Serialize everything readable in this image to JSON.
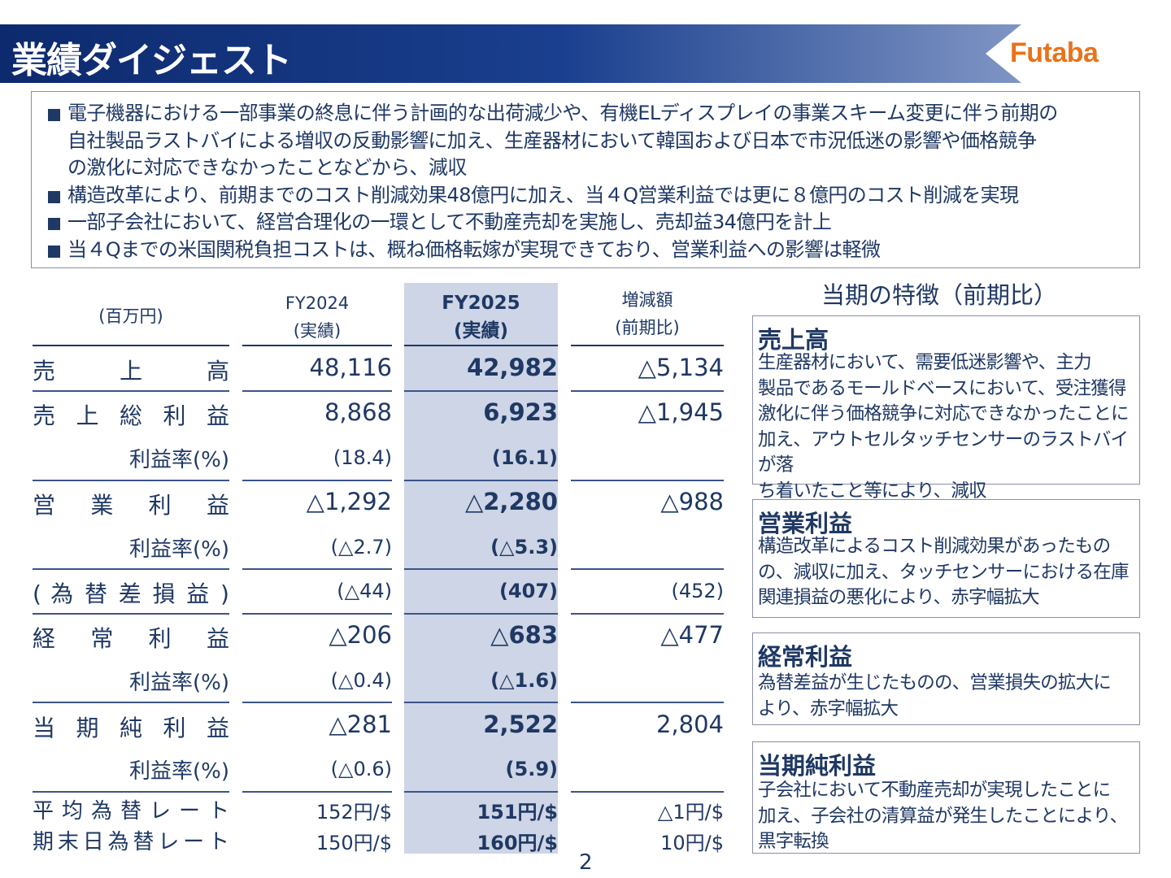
{
  "header": {
    "title": "業績ダイジェスト",
    "logo": "Futaba"
  },
  "summary": {
    "bullets": [
      "電子機器における一部事業の終息に伴う計画的な出荷減少や、有機ELディスプレイの事業スキーム変更に伴う前期の",
      "自社製品ラストバイによる増収の反動影響に加え、生産器材において韓国および日本で市況低迷の影響や価格競争",
      "の激化に対応できなかったことなどから、減収",
      "構造改革により、前期までのコスト削減効果48億円に加え、当４Q営業利益では更に８億円のコスト削減を実現",
      "一部子会社において、経営合理化の一環として不動産売却を実施し、売却益34億円を計上",
      "当４Qまでの米国関税負担コストは、概ね価格転嫁が実現できており、営業利益への影響は軽微"
    ]
  },
  "table": {
    "unit": "(百万円)",
    "col1": [
      "FY2024",
      "(実績)"
    ],
    "col2": [
      "FY2025",
      "(実績)"
    ],
    "col3": [
      "増減額",
      "(前期比)"
    ],
    "rows": [
      {
        "label": "売　　上　　高",
        "v1": "48,116",
        "v2": "42,982",
        "v3": "△5,134"
      },
      {
        "label": "売 上 総 利 益",
        "v1": "8,868",
        "v2": "6,923",
        "v3": "△1,945"
      },
      {
        "label": "利益率(%)",
        "v1": "(18.4)",
        "v2": "(16.1)",
        "v3": ""
      },
      {
        "label": "営　業　利　益",
        "v1": "△1,292",
        "v2": "△2,280",
        "v3": "△988"
      },
      {
        "label": "利益率(%)",
        "v1": "(△2.7)",
        "v2": "(△5.3)",
        "v3": ""
      },
      {
        "label": "( 為 替 差 損 益 )",
        "v1": "(△44)",
        "v2": "(407)",
        "v3": "(452)"
      },
      {
        "label": "経　常　利　益",
        "v1": "△206",
        "v2": "△683",
        "v3": "△477"
      },
      {
        "label": "利益率(%)",
        "v1": "(△0.4)",
        "v2": "(△1.6)",
        "v3": ""
      },
      {
        "label": "当 期 純 利 益",
        "v1": "△281",
        "v2": "2,522",
        "v3": "2,804"
      },
      {
        "label": "利益率(%)",
        "v1": "(△0.6)",
        "v2": "(5.9)",
        "v3": ""
      },
      {
        "label": "平 均 為 替 レ ー ト",
        "v1": "152円/$",
        "v2": "151円/$",
        "v3": "△1円/$"
      },
      {
        "label": "期末日為替レート",
        "v1": "150円/$",
        "v2": "160円/$",
        "v3": "10円/$"
      }
    ]
  },
  "side": {
    "title": "当期の特徴（前期比）",
    "cards": [
      {
        "title": "売上高",
        "lines": [
          "生産器材において、需要低迷影響や、主力",
          "製品であるモールドベースにおいて、受注獲得",
          "激化に伴う価格競争に対応できなかったことに",
          "加え、アウトセルタッチセンサーのラストバイが落",
          "ち着いたこと等により、減収"
        ]
      },
      {
        "title": "営業利益",
        "lines": [
          "構造改革によるコスト削減効果があったもの",
          "の、減収に加え、タッチセンサーにおける在庫",
          "関連損益の悪化により、赤字幅拡大"
        ]
      },
      {
        "title": "経常利益",
        "lines": [
          "為替差益が生じたものの、営業損失の拡大に",
          "より、赤字幅拡大"
        ]
      },
      {
        "title": "当期純利益",
        "lines": [
          "子会社において不動産売却が実現したことに",
          "加え、子会社の清算益が発生したことにより、",
          "黒字転換"
        ]
      }
    ]
  },
  "page_number": "2"
}
